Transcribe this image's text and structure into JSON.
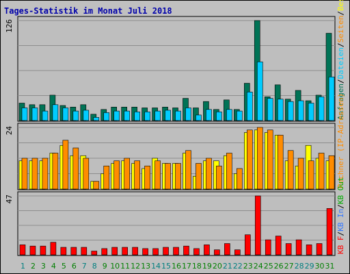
{
  "title": "Tages-Statistik im Monat Juli 2018",
  "colors": {
    "background": "#c0c0c0",
    "plot_background": "#bebebe",
    "gridline": "#8e8e8e",
    "title": "#0000aa",
    "anfragen": "#007356",
    "dateien": "#00ccff",
    "seiten_dark": "#ff8c00",
    "seiten_light": "#ffff00",
    "rechner": "#ff8c00",
    "kb_f": "#ff0000",
    "kb_in": "#3377ff",
    "kb_out": "#00aa00",
    "x_weekday": "#007f00",
    "x_weekend": "#007f7f",
    "slash": "#000000"
  },
  "chart_data": [
    {
      "type": "bar",
      "panel": "top",
      "y_label_text": "126",
      "ylim": [
        0,
        126
      ],
      "legend": [
        {
          "text": "Anfragen",
          "color": "#007356"
        },
        {
          "text": "/",
          "color": "#000000"
        },
        {
          "text": "Dateien",
          "color": "#00ccff"
        },
        {
          "text": "/",
          "color": "#000000"
        },
        {
          "text": "Seiten",
          "color": "#ff8c00"
        },
        {
          "text": "/",
          "color": "#000000"
        },
        {
          "text": "Besuche",
          "color": "#ffff00"
        }
      ],
      "categories": [
        "1",
        "2",
        "3",
        "4",
        "5",
        "6",
        "7",
        "8",
        "9",
        "10",
        "11",
        "12",
        "13",
        "14",
        "15",
        "16",
        "17",
        "18",
        "19",
        "20",
        "21",
        "22",
        "23",
        "24",
        "25",
        "26",
        "27",
        "28",
        "29",
        "30",
        "31"
      ],
      "series": [
        {
          "name": "Anfragen",
          "values": [
            22,
            20,
            20,
            32,
            19,
            17,
            20,
            8,
            14,
            17,
            17,
            17,
            16,
            16,
            17,
            16,
            28,
            16,
            24,
            14,
            26,
            14,
            47,
            126,
            30,
            45,
            27,
            38,
            25,
            32,
            110
          ]
        },
        {
          "name": "Dateien",
          "values": [
            16,
            16,
            12,
            20,
            16,
            12,
            13,
            4,
            10,
            12,
            12,
            11,
            11,
            12,
            13,
            12,
            16,
            7,
            14,
            11,
            14,
            12,
            36,
            74,
            28,
            27,
            24,
            25,
            22,
            30,
            55
          ]
        }
      ]
    },
    {
      "type": "bar",
      "panel": "middle",
      "y_label_text": "24",
      "ylim": [
        0,
        24
      ],
      "legend": [
        {
          "text": "Rechner (IP-Adressen)",
          "color": "#ff8c00"
        }
      ],
      "categories": [
        "1",
        "2",
        "3",
        "4",
        "5",
        "6",
        "7",
        "8",
        "9",
        "10",
        "11",
        "12",
        "13",
        "14",
        "15",
        "16",
        "17",
        "18",
        "19",
        "20",
        "21",
        "22",
        "23",
        "24",
        "25",
        "26",
        "27",
        "28",
        "29",
        "30",
        "31"
      ],
      "series": [
        {
          "name": "Besuche",
          "values": [
            11,
            11,
            11,
            14,
            17,
            13,
            13,
            3,
            6,
            10,
            11,
            10,
            8,
            12,
            10,
            10,
            14,
            5,
            11,
            11,
            13,
            6,
            22,
            23,
            22,
            21,
            11,
            9,
            17,
            12,
            11
          ]
        },
        {
          "name": "Rechner (IP-Adressen)",
          "values": [
            12,
            12,
            12,
            14,
            19,
            16,
            12,
            3,
            9,
            11,
            12,
            11,
            9,
            11,
            10,
            10,
            15,
            10,
            12,
            9,
            14,
            8,
            23,
            24,
            23,
            21,
            15,
            12,
            11,
            14,
            13
          ]
        }
      ]
    },
    {
      "type": "bar",
      "panel": "bottom",
      "y_label_text": "47",
      "ylim": [
        0,
        47
      ],
      "legend": [
        {
          "text": "KB F",
          "color": "#ff0000"
        },
        {
          "text": "/",
          "color": "#000000"
        },
        {
          "text": "KB In",
          "color": "#3377ff"
        },
        {
          "text": "/",
          "color": "#000000"
        },
        {
          "text": "KB Out",
          "color": "#00aa00"
        }
      ],
      "categories": [
        "1",
        "2",
        "3",
        "4",
        "5",
        "6",
        "7",
        "8",
        "9",
        "10",
        "11",
        "12",
        "13",
        "14",
        "15",
        "16",
        "17",
        "18",
        "19",
        "20",
        "21",
        "22",
        "23",
        "24",
        "25",
        "26",
        "27",
        "28",
        "29",
        "30",
        "31"
      ],
      "series": [
        {
          "name": "KB F",
          "values": [
            8,
            7,
            7,
            10,
            6,
            6,
            6,
            3,
            5,
            6,
            6,
            6,
            5,
            5,
            6,
            6,
            7,
            5,
            8,
            4,
            9,
            4,
            16,
            47,
            12,
            15,
            9,
            12,
            8,
            9,
            37
          ]
        }
      ]
    }
  ],
  "weekend_days": [
    "1",
    "7",
    "8",
    "14",
    "15",
    "21",
    "22",
    "28",
    "29"
  ]
}
